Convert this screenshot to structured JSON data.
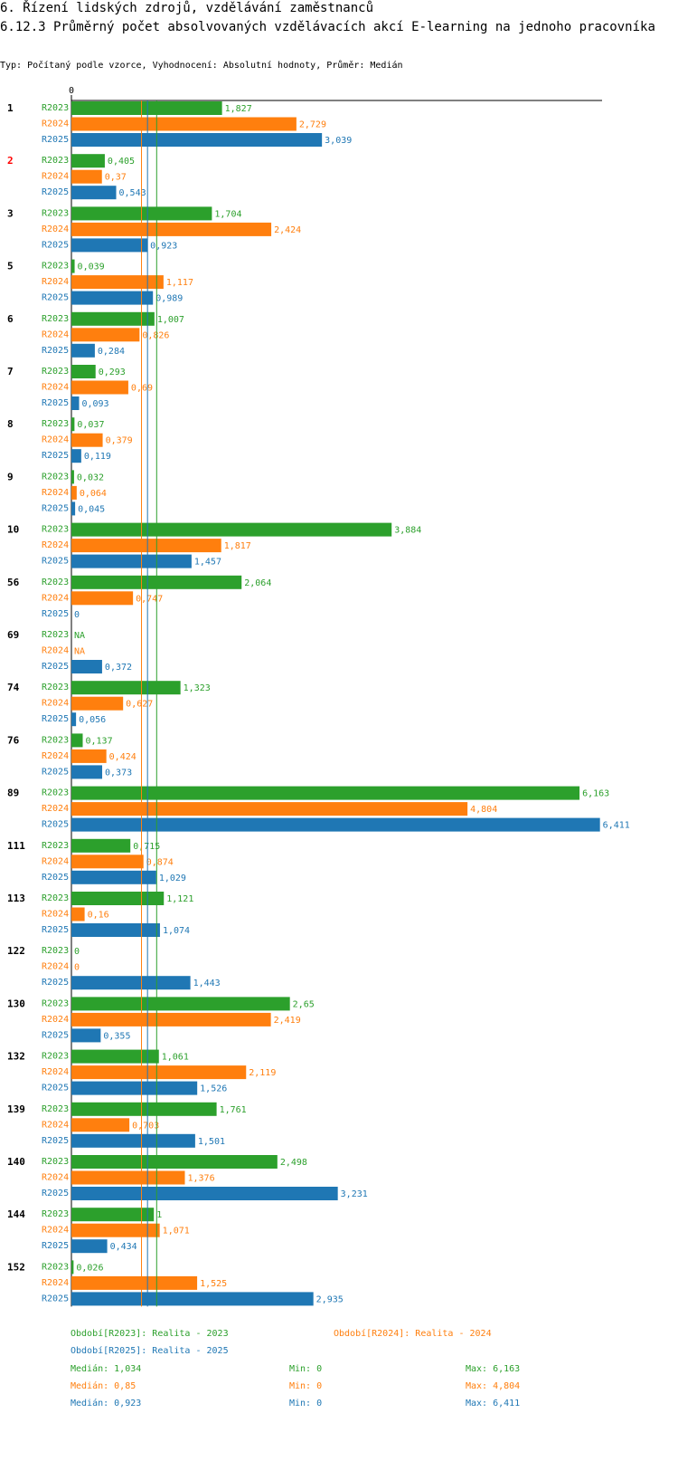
{
  "header": {
    "title": "6. Řízení lidských zdrojů, vzdělávání zaměstnanců",
    "subtitle": "6.12.3 Průměrný počet absolvovaných vzdělávacích akcí E-learning na jednoho pracovníka",
    "type_line": "Typ: Počítaný podle vzorce, Vyhodnocení: Absolutní hodnoty, Průměr: Medián"
  },
  "colors": {
    "R2023": "#2ca02c",
    "R2024": "#ff7f0e",
    "R2025": "#1f77b4",
    "highlight": "#ff0000"
  },
  "chart_data": {
    "type": "bar",
    "orientation": "horizontal",
    "x_tick_label": "0",
    "xlim": [
      0,
      6.5
    ],
    "series_names": [
      "R2023",
      "R2024",
      "R2025"
    ],
    "groups": [
      {
        "label": "1",
        "highlight": false,
        "values": [
          "1,827",
          "2,729",
          "3,039"
        ]
      },
      {
        "label": "2",
        "highlight": true,
        "values": [
          "0,405",
          "0,37",
          "0,543"
        ]
      },
      {
        "label": "3",
        "highlight": false,
        "values": [
          "1,704",
          "2,424",
          "0,923"
        ]
      },
      {
        "label": "5",
        "highlight": false,
        "values": [
          "0,039",
          "1,117",
          "0,989"
        ]
      },
      {
        "label": "6",
        "highlight": false,
        "values": [
          "1,007",
          "0,826",
          "0,284"
        ]
      },
      {
        "label": "7",
        "highlight": false,
        "values": [
          "0,293",
          "0,69",
          "0,093"
        ]
      },
      {
        "label": "8",
        "highlight": false,
        "values": [
          "0,037",
          "0,379",
          "0,119"
        ]
      },
      {
        "label": "9",
        "highlight": false,
        "values": [
          "0,032",
          "0,064",
          "0,045"
        ]
      },
      {
        "label": "10",
        "highlight": false,
        "values": [
          "3,884",
          "1,817",
          "1,457"
        ]
      },
      {
        "label": "56",
        "highlight": false,
        "values": [
          "2,064",
          "0,747",
          "0"
        ]
      },
      {
        "label": "69",
        "highlight": false,
        "values": [
          "NA",
          "NA",
          "0,372"
        ]
      },
      {
        "label": "74",
        "highlight": false,
        "values": [
          "1,323",
          "0,627",
          "0,056"
        ]
      },
      {
        "label": "76",
        "highlight": false,
        "values": [
          "0,137",
          "0,424",
          "0,373"
        ]
      },
      {
        "label": "89",
        "highlight": false,
        "values": [
          "6,163",
          "4,804",
          "6,411"
        ]
      },
      {
        "label": "111",
        "highlight": false,
        "values": [
          "0,715",
          "0,874",
          "1,029"
        ]
      },
      {
        "label": "113",
        "highlight": false,
        "values": [
          "1,121",
          "0,16",
          "1,074"
        ]
      },
      {
        "label": "122",
        "highlight": false,
        "values": [
          "0",
          "0",
          "1,443"
        ]
      },
      {
        "label": "130",
        "highlight": false,
        "values": [
          "2,65",
          "2,419",
          "0,355"
        ]
      },
      {
        "label": "132",
        "highlight": false,
        "values": [
          "1,061",
          "2,119",
          "1,526"
        ]
      },
      {
        "label": "139",
        "highlight": false,
        "values": [
          "1,761",
          "0,703",
          "1,501"
        ]
      },
      {
        "label": "140",
        "highlight": false,
        "values": [
          "2,498",
          "1,376",
          "3,231"
        ]
      },
      {
        "label": "144",
        "highlight": false,
        "values": [
          "1",
          "1,071",
          "0,434"
        ]
      },
      {
        "label": "152",
        "highlight": false,
        "values": [
          "0,026",
          "1,525",
          "2,935"
        ]
      }
    ],
    "median_lines": [
      1.034,
      0.85,
      0.923
    ]
  },
  "legend": {
    "periods": [
      "Období[R2023]: Realita - 2023",
      "Období[R2024]: Realita - 2024",
      "Období[R2025]: Realita - 2025"
    ],
    "stats": [
      {
        "median": "Medián: 1,034",
        "min": "Min: 0",
        "max": "Max: 6,163"
      },
      {
        "median": "Medián: 0,85",
        "min": "Min: 0",
        "max": "Max: 4,804"
      },
      {
        "median": "Medián: 0,923",
        "min": "Min: 0",
        "max": "Max: 6,411"
      }
    ]
  }
}
